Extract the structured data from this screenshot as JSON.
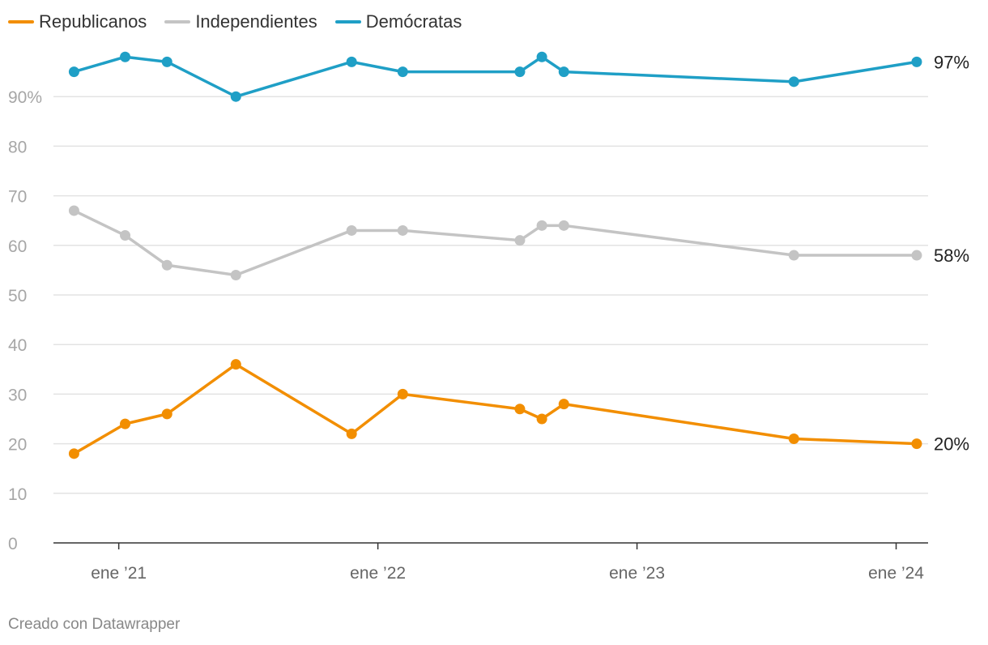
{
  "legend": [
    {
      "label": "Republicanos",
      "color": "#f28e00"
    },
    {
      "label": "Independientes",
      "color": "#c4c4c4"
    },
    {
      "label": "Demócratas",
      "color": "#1f9fc6"
    }
  ],
  "credit": "Creado con Datawrapper",
  "chart_data": {
    "type": "line",
    "title": "",
    "xlabel": "",
    "ylabel": "",
    "ylim": [
      0,
      100
    ],
    "xlim": [
      "2020-10-01",
      "2024-02-15"
    ],
    "grid": true,
    "legend_position": "top-left",
    "y_ticks": [
      {
        "value": 0,
        "label": "0"
      },
      {
        "value": 10,
        "label": "10"
      },
      {
        "value": 20,
        "label": "20"
      },
      {
        "value": 30,
        "label": "30"
      },
      {
        "value": 40,
        "label": "40"
      },
      {
        "value": 50,
        "label": "50"
      },
      {
        "value": 60,
        "label": "60"
      },
      {
        "value": 70,
        "label": "70"
      },
      {
        "value": 80,
        "label": "80"
      },
      {
        "value": 90,
        "label": "90%"
      }
    ],
    "x_ticks": [
      {
        "date": "2021-01-01",
        "label": "ene ’21"
      },
      {
        "date": "2022-01-01",
        "label": "ene ’22"
      },
      {
        "date": "2023-01-01",
        "label": "ene ’23"
      },
      {
        "date": "2024-01-01",
        "label": "ene ’24"
      }
    ],
    "x": [
      "2020-10-30",
      "2021-01-10",
      "2021-03-10",
      "2021-06-15",
      "2021-11-25",
      "2022-02-05",
      "2022-07-20",
      "2022-08-20",
      "2022-09-20",
      "2023-08-10",
      "2024-01-30"
    ],
    "series": [
      {
        "name": "Republicanos",
        "color": "#f28e00",
        "end_label": "20%",
        "values": [
          18,
          24,
          26,
          36,
          22,
          30,
          27,
          25,
          28,
          21,
          20
        ]
      },
      {
        "name": "Independientes",
        "color": "#c4c4c4",
        "end_label": "58%",
        "values": [
          67,
          62,
          56,
          54,
          63,
          63,
          61,
          64,
          64,
          58,
          58
        ]
      },
      {
        "name": "Demócratas",
        "color": "#1f9fc6",
        "end_label": "97%",
        "values": [
          95,
          98,
          97,
          90,
          97,
          95,
          95,
          98,
          95,
          93,
          97
        ]
      }
    ]
  }
}
